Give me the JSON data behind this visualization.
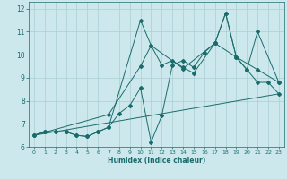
{
  "title": "",
  "xlabel": "Humidex (Indice chaleur)",
  "xlim": [
    -0.5,
    23.5
  ],
  "ylim": [
    6,
    12.3
  ],
  "xticks": [
    0,
    1,
    2,
    3,
    4,
    5,
    6,
    7,
    8,
    9,
    10,
    11,
    12,
    13,
    14,
    15,
    16,
    17,
    18,
    19,
    20,
    21,
    22,
    23
  ],
  "yticks": [
    6,
    7,
    8,
    9,
    10,
    11,
    12
  ],
  "bg_color": "#cce8ec",
  "grid_color": "#aacdd2",
  "line_color": "#1a6b6b",
  "line1_x": [
    0,
    1,
    2,
    3,
    4,
    5,
    6,
    7,
    8,
    9,
    10,
    11,
    12,
    13,
    14,
    15,
    16,
    17,
    18,
    19,
    20,
    21,
    22,
    23
  ],
  "line1_y": [
    6.5,
    6.65,
    6.65,
    6.65,
    6.5,
    6.45,
    6.65,
    6.85,
    7.45,
    7.8,
    8.55,
    6.2,
    7.35,
    9.55,
    9.75,
    9.45,
    10.1,
    10.5,
    11.8,
    9.9,
    9.35,
    8.8,
    8.8,
    8.3
  ],
  "line2_x": [
    0,
    1,
    2,
    3,
    4,
    5,
    6,
    7,
    10,
    11,
    12,
    13,
    14,
    15,
    17,
    18,
    19,
    20,
    21,
    23
  ],
  "line2_y": [
    6.5,
    6.65,
    6.65,
    6.65,
    6.5,
    6.45,
    6.65,
    6.85,
    11.5,
    10.4,
    9.55,
    9.75,
    9.45,
    9.2,
    10.5,
    11.8,
    9.9,
    9.35,
    11.0,
    8.8
  ],
  "line3_x": [
    0,
    7,
    10,
    11,
    14,
    17,
    19,
    21,
    23
  ],
  "line3_y": [
    6.5,
    7.4,
    9.5,
    10.4,
    9.4,
    10.5,
    9.9,
    9.35,
    8.8
  ],
  "line4_x": [
    0,
    23
  ],
  "line4_y": [
    6.5,
    8.3
  ]
}
